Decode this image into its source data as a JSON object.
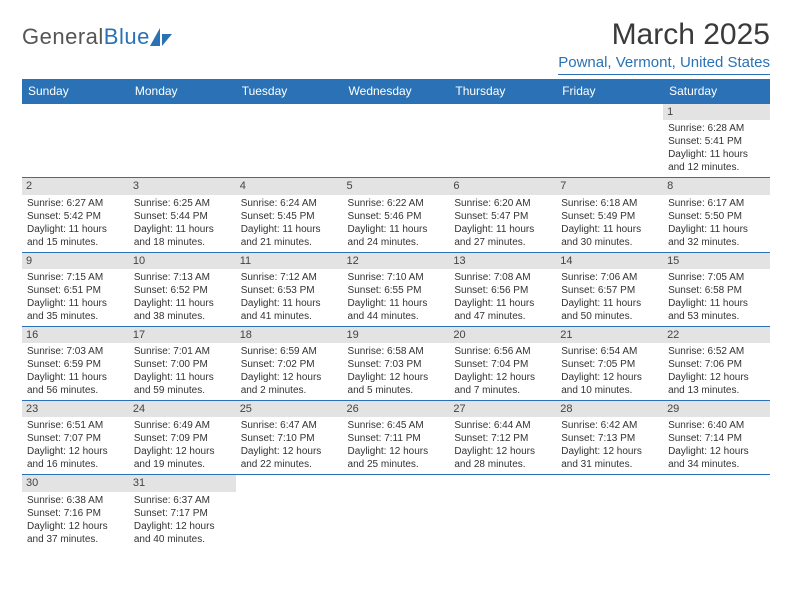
{
  "logo": {
    "text1": "General",
    "text2": "Blue"
  },
  "title": "March 2025",
  "location": "Pownal, Vermont, United States",
  "colors": {
    "header_bg": "#2a72b5",
    "header_text": "#ffffff",
    "daynum_bg": "#e3e3e3",
    "border": "#2a72b5",
    "body_text": "#333333",
    "accent": "#2a72b5"
  },
  "day_headers": [
    "Sunday",
    "Monday",
    "Tuesday",
    "Wednesday",
    "Thursday",
    "Friday",
    "Saturday"
  ],
  "weeks": [
    [
      null,
      null,
      null,
      null,
      null,
      null,
      {
        "n": "1",
        "sr": "6:28 AM",
        "ss": "5:41 PM",
        "dl": "11 hours and 12 minutes."
      }
    ],
    [
      {
        "n": "2",
        "sr": "6:27 AM",
        "ss": "5:42 PM",
        "dl": "11 hours and 15 minutes."
      },
      {
        "n": "3",
        "sr": "6:25 AM",
        "ss": "5:44 PM",
        "dl": "11 hours and 18 minutes."
      },
      {
        "n": "4",
        "sr": "6:24 AM",
        "ss": "5:45 PM",
        "dl": "11 hours and 21 minutes."
      },
      {
        "n": "5",
        "sr": "6:22 AM",
        "ss": "5:46 PM",
        "dl": "11 hours and 24 minutes."
      },
      {
        "n": "6",
        "sr": "6:20 AM",
        "ss": "5:47 PM",
        "dl": "11 hours and 27 minutes."
      },
      {
        "n": "7",
        "sr": "6:18 AM",
        "ss": "5:49 PM",
        "dl": "11 hours and 30 minutes."
      },
      {
        "n": "8",
        "sr": "6:17 AM",
        "ss": "5:50 PM",
        "dl": "11 hours and 32 minutes."
      }
    ],
    [
      {
        "n": "9",
        "sr": "7:15 AM",
        "ss": "6:51 PM",
        "dl": "11 hours and 35 minutes."
      },
      {
        "n": "10",
        "sr": "7:13 AM",
        "ss": "6:52 PM",
        "dl": "11 hours and 38 minutes."
      },
      {
        "n": "11",
        "sr": "7:12 AM",
        "ss": "6:53 PM",
        "dl": "11 hours and 41 minutes."
      },
      {
        "n": "12",
        "sr": "7:10 AM",
        "ss": "6:55 PM",
        "dl": "11 hours and 44 minutes."
      },
      {
        "n": "13",
        "sr": "7:08 AM",
        "ss": "6:56 PM",
        "dl": "11 hours and 47 minutes."
      },
      {
        "n": "14",
        "sr": "7:06 AM",
        "ss": "6:57 PM",
        "dl": "11 hours and 50 minutes."
      },
      {
        "n": "15",
        "sr": "7:05 AM",
        "ss": "6:58 PM",
        "dl": "11 hours and 53 minutes."
      }
    ],
    [
      {
        "n": "16",
        "sr": "7:03 AM",
        "ss": "6:59 PM",
        "dl": "11 hours and 56 minutes."
      },
      {
        "n": "17",
        "sr": "7:01 AM",
        "ss": "7:00 PM",
        "dl": "11 hours and 59 minutes."
      },
      {
        "n": "18",
        "sr": "6:59 AM",
        "ss": "7:02 PM",
        "dl": "12 hours and 2 minutes."
      },
      {
        "n": "19",
        "sr": "6:58 AM",
        "ss": "7:03 PM",
        "dl": "12 hours and 5 minutes."
      },
      {
        "n": "20",
        "sr": "6:56 AM",
        "ss": "7:04 PM",
        "dl": "12 hours and 7 minutes."
      },
      {
        "n": "21",
        "sr": "6:54 AM",
        "ss": "7:05 PM",
        "dl": "12 hours and 10 minutes."
      },
      {
        "n": "22",
        "sr": "6:52 AM",
        "ss": "7:06 PM",
        "dl": "12 hours and 13 minutes."
      }
    ],
    [
      {
        "n": "23",
        "sr": "6:51 AM",
        "ss": "7:07 PM",
        "dl": "12 hours and 16 minutes."
      },
      {
        "n": "24",
        "sr": "6:49 AM",
        "ss": "7:09 PM",
        "dl": "12 hours and 19 minutes."
      },
      {
        "n": "25",
        "sr": "6:47 AM",
        "ss": "7:10 PM",
        "dl": "12 hours and 22 minutes."
      },
      {
        "n": "26",
        "sr": "6:45 AM",
        "ss": "7:11 PM",
        "dl": "12 hours and 25 minutes."
      },
      {
        "n": "27",
        "sr": "6:44 AM",
        "ss": "7:12 PM",
        "dl": "12 hours and 28 minutes."
      },
      {
        "n": "28",
        "sr": "6:42 AM",
        "ss": "7:13 PM",
        "dl": "12 hours and 31 minutes."
      },
      {
        "n": "29",
        "sr": "6:40 AM",
        "ss": "7:14 PM",
        "dl": "12 hours and 34 minutes."
      }
    ],
    [
      {
        "n": "30",
        "sr": "6:38 AM",
        "ss": "7:16 PM",
        "dl": "12 hours and 37 minutes."
      },
      {
        "n": "31",
        "sr": "6:37 AM",
        "ss": "7:17 PM",
        "dl": "12 hours and 40 minutes."
      },
      null,
      null,
      null,
      null,
      null
    ]
  ]
}
